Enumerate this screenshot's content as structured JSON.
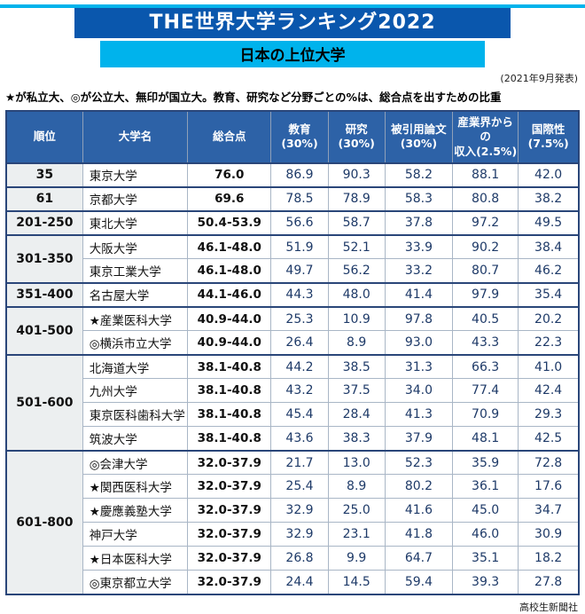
{
  "page": {
    "title": "THE世界大学ランキング2022",
    "subtitle": "日本の上位大学",
    "announce_date": "(2021年9月発表)",
    "note": "★が私立大、◎が公立大、無印が国立大。教育、研究など分野ごとの%は、総合点を出すための比重",
    "credit": "高校生新聞社"
  },
  "colors": {
    "title_bg": "#0a57ad",
    "accent_cyan": "#00b3ec",
    "header_bg": "#2d62a7",
    "rank_cell_bg": "#eceff0",
    "score_text": "#1e3a68",
    "outer_border": "#2a4679"
  },
  "chart_data": {
    "type": "table",
    "title": "THE世界大学ランキング2022 日本の上位大学",
    "columns": [
      "順位",
      "大学名",
      "総合点",
      "教育\n(30%)",
      "研究\n(30%)",
      "被引用論文\n(30%)",
      "産業界からの\n収入(2.5%)",
      "国際性\n(7.5%)"
    ],
    "groups": [
      {
        "rank": "35",
        "rows": [
          {
            "name": "東京大学",
            "total": "76.0",
            "scores": [
              "86.9",
              "90.3",
              "58.2",
              "88.1",
              "42.0"
            ]
          }
        ]
      },
      {
        "rank": "61",
        "rows": [
          {
            "name": "京都大学",
            "total": "69.6",
            "scores": [
              "78.5",
              "78.9",
              "58.3",
              "80.8",
              "38.2"
            ]
          }
        ]
      },
      {
        "rank": "201-250",
        "rows": [
          {
            "name": "東北大学",
            "total": "50.4-53.9",
            "scores": [
              "56.6",
              "58.7",
              "37.8",
              "97.2",
              "49.5"
            ]
          }
        ]
      },
      {
        "rank": "301-350",
        "rows": [
          {
            "name": "大阪大学",
            "total": "46.1-48.0",
            "scores": [
              "51.9",
              "52.1",
              "33.9",
              "90.2",
              "38.4"
            ]
          },
          {
            "name": "東京工業大学",
            "total": "46.1-48.0",
            "scores": [
              "49.7",
              "56.2",
              "33.2",
              "80.7",
              "46.2"
            ]
          }
        ]
      },
      {
        "rank": "351-400",
        "rows": [
          {
            "name": "名古屋大学",
            "total": "44.1-46.0",
            "scores": [
              "44.3",
              "48.0",
              "41.4",
              "97.9",
              "35.4"
            ]
          }
        ]
      },
      {
        "rank": "401-500",
        "rows": [
          {
            "name": "★産業医科大学",
            "total": "40.9-44.0",
            "scores": [
              "25.3",
              "10.9",
              "97.8",
              "40.5",
              "20.2"
            ]
          },
          {
            "name": "◎横浜市立大学",
            "total": "40.9-44.0",
            "scores": [
              "26.4",
              "8.9",
              "93.0",
              "43.3",
              "22.3"
            ]
          }
        ]
      },
      {
        "rank": "501-600",
        "rows": [
          {
            "name": "北海道大学",
            "total": "38.1-40.8",
            "scores": [
              "44.2",
              "38.5",
              "31.3",
              "66.3",
              "41.0"
            ]
          },
          {
            "name": "九州大学",
            "total": "38.1-40.8",
            "scores": [
              "43.2",
              "37.5",
              "34.0",
              "77.4",
              "42.4"
            ]
          },
          {
            "name": "東京医科歯科大学",
            "total": "38.1-40.8",
            "scores": [
              "45.4",
              "28.4",
              "41.3",
              "70.9",
              "29.3"
            ]
          },
          {
            "name": "筑波大学",
            "total": "38.1-40.8",
            "scores": [
              "43.6",
              "38.3",
              "37.9",
              "48.1",
              "42.5"
            ]
          }
        ]
      },
      {
        "rank": "601-800",
        "rows": [
          {
            "name": "◎会津大学",
            "total": "32.0-37.9",
            "scores": [
              "21.7",
              "13.0",
              "52.3",
              "35.9",
              "72.8"
            ]
          },
          {
            "name": "★関西医科大学",
            "total": "32.0-37.9",
            "scores": [
              "25.4",
              "8.9",
              "80.2",
              "36.1",
              "17.6"
            ]
          },
          {
            "name": "★慶應義塾大学",
            "total": "32.0-37.9",
            "scores": [
              "32.9",
              "25.0",
              "41.6",
              "45.0",
              "34.7"
            ]
          },
          {
            "name": "神戸大学",
            "total": "32.0-37.9",
            "scores": [
              "32.9",
              "23.1",
              "41.8",
              "46.0",
              "30.9"
            ]
          },
          {
            "name": "★日本医科大学",
            "total": "32.0-37.9",
            "scores": [
              "26.8",
              "9.9",
              "64.7",
              "35.1",
              "18.2"
            ]
          },
          {
            "name": "◎東京都立大学",
            "total": "32.0-37.9",
            "scores": [
              "24.4",
              "14.5",
              "59.4",
              "39.3",
              "27.8"
            ]
          }
        ]
      }
    ]
  }
}
